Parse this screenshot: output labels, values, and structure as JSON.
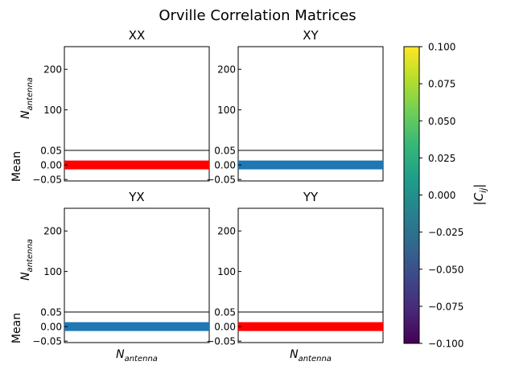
{
  "chart_data": {
    "type": "heatmap",
    "suptitle": "Orville Correlation Matrices",
    "panel_order": [
      "XX",
      "XY",
      "YX",
      "YY"
    ],
    "panels": [
      {
        "title": "XX",
        "matrix_ylabel": "N",
        "matrix_ylabel_sub": "antenna",
        "matrix_ylim": [
          0,
          256
        ],
        "matrix_yticks": [
          {
            "value": 100,
            "label": "100"
          },
          {
            "value": 200,
            "label": "200"
          }
        ],
        "mean_ylabel": "Mean",
        "mean_ylim": [
          -0.055,
          0.05
        ],
        "mean_yticks": [
          {
            "value": -0.05,
            "label": "−0.05"
          },
          {
            "value": 0.0,
            "label": "0.00"
          },
          {
            "value": 0.05,
            "label": "0.05"
          }
        ],
        "mean_value": 0.0,
        "mean_color": "#ff0000",
        "xlabel": "",
        "xlabel_sub": ""
      },
      {
        "title": "XY",
        "matrix_ylabel": "",
        "matrix_ylabel_sub": "",
        "matrix_ylim": [
          0,
          256
        ],
        "matrix_yticks": [
          {
            "value": 100,
            "label": "100"
          },
          {
            "value": 200,
            "label": "200"
          }
        ],
        "mean_ylabel": "",
        "mean_ylim": [
          -0.055,
          0.05
        ],
        "mean_yticks": [
          {
            "value": -0.05,
            "label": "−0.05"
          },
          {
            "value": 0.0,
            "label": "0.00"
          },
          {
            "value": 0.05,
            "label": "0.05"
          }
        ],
        "mean_value": 0.0,
        "mean_color": "#1f77b4",
        "xlabel": "",
        "xlabel_sub": ""
      },
      {
        "title": "YX",
        "matrix_ylabel": "N",
        "matrix_ylabel_sub": "antenna",
        "matrix_ylim": [
          0,
          256
        ],
        "matrix_yticks": [
          {
            "value": 100,
            "label": "100"
          },
          {
            "value": 200,
            "label": "200"
          }
        ],
        "mean_ylabel": "Mean",
        "mean_ylim": [
          -0.055,
          0.05
        ],
        "mean_yticks": [
          {
            "value": -0.05,
            "label": "−0.05"
          },
          {
            "value": 0.0,
            "label": "0.00"
          },
          {
            "value": 0.05,
            "label": "0.05"
          }
        ],
        "mean_value": 0.0,
        "mean_color": "#1f77b4",
        "xlabel": "N",
        "xlabel_sub": "antenna"
      },
      {
        "title": "YY",
        "matrix_ylabel": "",
        "matrix_ylabel_sub": "",
        "matrix_ylim": [
          0,
          256
        ],
        "matrix_yticks": [
          {
            "value": 100,
            "label": "100"
          },
          {
            "value": 200,
            "label": "200"
          }
        ],
        "mean_ylabel": "",
        "mean_ylim": [
          -0.055,
          0.05
        ],
        "mean_yticks": [
          {
            "value": -0.05,
            "label": "−0.05"
          },
          {
            "value": 0.0,
            "label": "0.00"
          },
          {
            "value": 0.05,
            "label": "0.05"
          }
        ],
        "mean_value": 0.0,
        "mean_color": "#ff0000",
        "xlabel": "N",
        "xlabel_sub": "antenna"
      }
    ],
    "colorbar": {
      "label_main": "|C",
      "label_sub": "ij",
      "label_end": "|",
      "colormap": "viridis",
      "range": [
        -0.1,
        0.1
      ],
      "ticks": [
        {
          "value": 0.1,
          "label": "0.100"
        },
        {
          "value": 0.075,
          "label": "0.075"
        },
        {
          "value": 0.05,
          "label": "0.050"
        },
        {
          "value": 0.025,
          "label": "0.025"
        },
        {
          "value": 0.0,
          "label": "0.000"
        },
        {
          "value": -0.025,
          "label": "−0.025"
        },
        {
          "value": -0.05,
          "label": "−0.050"
        },
        {
          "value": -0.075,
          "label": "−0.075"
        },
        {
          "value": -0.1,
          "label": "−0.100"
        }
      ],
      "colors": [
        "#440154",
        "#482878",
        "#3e4989",
        "#31688e",
        "#26828e",
        "#1f9e89",
        "#35b779",
        "#6ece58",
        "#b5de2b",
        "#fde725"
      ]
    }
  }
}
